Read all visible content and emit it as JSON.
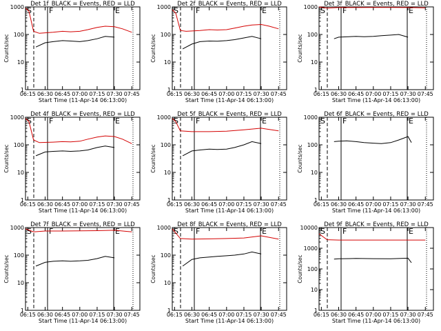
{
  "chart_data": [
    {
      "type": "line",
      "title": "Det 1f_BLACK = Events, RED = LLD",
      "xlabel": "Start Time (11-Apr-14 06:13:00)",
      "ylabel": "Counts/sec",
      "y_scale": "log",
      "ylim": [
        1,
        1000
      ],
      "y_ticks": [
        "1",
        "10",
        "100",
        "1000"
      ],
      "x_ticks": [
        "06:15",
        "06:30",
        "06:45",
        "07:00",
        "07:15",
        "07:30",
        "07:45"
      ],
      "vertical_lines": [
        "S",
        "F",
        "E"
      ],
      "series": [
        {
          "color_role": "black",
          "x": [
            "06:22",
            "06:30",
            "06:37",
            "06:45",
            "06:52",
            "07:00",
            "07:07",
            "07:15",
            "07:22",
            "07:30"
          ],
          "values": [
            35,
            50,
            55,
            60,
            58,
            55,
            60,
            70,
            85,
            80
          ]
        },
        {
          "color_role": "red",
          "x": [
            "06:13",
            "06:16",
            "06:20",
            "06:25",
            "06:37",
            "06:45",
            "06:52",
            "07:00",
            "07:07",
            "07:15",
            "07:22",
            "07:30",
            "07:37",
            "07:45"
          ],
          "values": [
            900,
            700,
            130,
            110,
            120,
            130,
            125,
            130,
            150,
            180,
            200,
            190,
            160,
            120
          ]
        }
      ]
    },
    {
      "type": "line",
      "title": "Det 2f_BLACK = Events, RED = LLD",
      "xlabel": "Start Time (11-Apr-14 06:13:00)",
      "ylabel": "Counts/sec",
      "y_scale": "log",
      "ylim": [
        1,
        1000
      ],
      "y_ticks": [
        "1",
        "10",
        "100",
        "1000"
      ],
      "x_ticks": [
        "06:15",
        "06:30",
        "06:45",
        "07:00",
        "07:15",
        "07:30",
        "07:45"
      ],
      "vertical_lines": [
        "S",
        "F",
        "E"
      ],
      "series": [
        {
          "color_role": "black",
          "x": [
            "06:22",
            "06:30",
            "06:37",
            "06:45",
            "06:52",
            "07:00",
            "07:07",
            "07:15",
            "07:22",
            "07:30"
          ],
          "values": [
            30,
            45,
            55,
            58,
            57,
            60,
            65,
            75,
            85,
            70
          ]
        },
        {
          "color_role": "red",
          "x": [
            "06:13",
            "06:16",
            "06:20",
            "06:25",
            "06:37",
            "06:45",
            "06:52",
            "07:00",
            "07:07",
            "07:15",
            "07:22",
            "07:30",
            "07:37",
            "07:45"
          ],
          "values": [
            800,
            600,
            140,
            130,
            140,
            150,
            145,
            150,
            170,
            200,
            220,
            230,
            200,
            160
          ]
        }
      ]
    },
    {
      "type": "line",
      "title": "Det 3f_BLACK = Events, RED = LLD",
      "xlabel": "Start Time (11-Apr-14 06:13:00)",
      "ylabel": "Counts/sec",
      "y_scale": "log",
      "ylim": [
        1,
        1000
      ],
      "y_ticks": [
        "1",
        "10",
        "100",
        "1000"
      ],
      "x_ticks": [
        "06:15",
        "06:30",
        "06:45",
        "07:00",
        "07:15",
        "07:30",
        "07:45"
      ],
      "vertical_lines": [
        "S",
        "F",
        "E"
      ],
      "series": [
        {
          "color_role": "black",
          "x": [
            "06:26",
            "06:30",
            "06:37",
            "06:45",
            "06:52",
            "07:00",
            "07:07",
            "07:15",
            "07:22",
            "07:30"
          ],
          "values": [
            70,
            80,
            82,
            85,
            83,
            85,
            90,
            95,
            100,
            80
          ]
        },
        {
          "color_role": "red",
          "x": [
            "06:13",
            "06:20",
            "06:30",
            "06:45",
            "07:00",
            "07:15",
            "07:30",
            "07:45"
          ],
          "values": [
            1000,
            900,
            950,
            950,
            960,
            960,
            950,
            920
          ]
        }
      ]
    },
    {
      "type": "line",
      "title": "Det 4f_BLACK = Events, RED = LLD",
      "xlabel": "Start Time (11-Apr-14 06:13:00)",
      "ylabel": "Counts/sec",
      "y_scale": "log",
      "ylim": [
        1,
        1000
      ],
      "y_ticks": [
        "1",
        "10",
        "100",
        "1000"
      ],
      "x_ticks": [
        "06:15",
        "06:30",
        "06:45",
        "07:00",
        "07:15",
        "07:30",
        "07:45"
      ],
      "vertical_lines": [
        "S",
        "F",
        "E"
      ],
      "series": [
        {
          "color_role": "black",
          "x": [
            "06:22",
            "06:30",
            "06:37",
            "06:45",
            "06:52",
            "07:00",
            "07:07",
            "07:15",
            "07:22",
            "07:30"
          ],
          "values": [
            40,
            55,
            58,
            60,
            58,
            60,
            65,
            80,
            90,
            80
          ]
        },
        {
          "color_role": "red",
          "x": [
            "06:13",
            "06:16",
            "06:20",
            "06:25",
            "06:37",
            "06:45",
            "06:52",
            "07:00",
            "07:07",
            "07:15",
            "07:22",
            "07:30",
            "07:37",
            "07:45"
          ],
          "values": [
            900,
            700,
            150,
            120,
            125,
            130,
            128,
            135,
            160,
            190,
            210,
            200,
            160,
            110
          ]
        }
      ]
    },
    {
      "type": "line",
      "title": "Det 5f_BLACK = Events, RED = LLD",
      "xlabel": "Start Time (11-Apr-14 06:13:00)",
      "ylabel": "Counts/sec",
      "y_scale": "log",
      "ylim": [
        1,
        1000
      ],
      "y_ticks": [
        "1",
        "10",
        "100",
        "1000"
      ],
      "x_ticks": [
        "06:15",
        "06:30",
        "06:45",
        "07:00",
        "07:15",
        "07:30",
        "07:45"
      ],
      "vertical_lines": [
        "S",
        "F",
        "E"
      ],
      "series": [
        {
          "color_role": "black",
          "x": [
            "06:22",
            "06:30",
            "06:37",
            "06:45",
            "06:52",
            "07:00",
            "07:07",
            "07:15",
            "07:22",
            "07:30"
          ],
          "values": [
            40,
            60,
            65,
            70,
            68,
            70,
            80,
            100,
            130,
            110
          ]
        },
        {
          "color_role": "red",
          "x": [
            "06:13",
            "06:16",
            "06:20",
            "06:30",
            "06:45",
            "07:00",
            "07:15",
            "07:30",
            "07:45"
          ],
          "values": [
            900,
            700,
            320,
            300,
            300,
            310,
            350,
            400,
            320
          ]
        }
      ]
    },
    {
      "type": "line",
      "title": "Det 6f_BLACK = Events, RED = LLD",
      "xlabel": "Start Time (11-Apr-14 06:13:00)",
      "ylabel": "Counts/sec",
      "y_scale": "log",
      "ylim": [
        1,
        1000
      ],
      "y_ticks": [
        "1",
        "10",
        "100",
        "1000"
      ],
      "x_ticks": [
        "06:15",
        "06:30",
        "06:45",
        "07:00",
        "07:15",
        "07:30",
        "07:45"
      ],
      "vertical_lines": [
        "S",
        "F",
        "E"
      ],
      "series": [
        {
          "color_role": "black",
          "x": [
            "06:26",
            "06:30",
            "06:37",
            "06:45",
            "06:52",
            "07:00",
            "07:07",
            "07:15",
            "07:22",
            "07:30",
            "07:33"
          ],
          "values": [
            130,
            135,
            140,
            130,
            120,
            115,
            110,
            120,
            150,
            200,
            120
          ]
        }
      ]
    },
    {
      "type": "line",
      "title": "Det 7f_BLACK = Events, RED = LLD",
      "xlabel": "Start Time (11-Apr-14 06:13:00)",
      "ylabel": "Counts/sec",
      "y_scale": "log",
      "ylim": [
        1,
        1000
      ],
      "y_ticks": [
        "1",
        "10",
        "100",
        "1000"
      ],
      "x_ticks": [
        "06:15",
        "06:30",
        "06:45",
        "07:00",
        "07:15",
        "07:30",
        "07:45"
      ],
      "vertical_lines": [
        "S",
        "F",
        "E"
      ],
      "series": [
        {
          "color_role": "black",
          "x": [
            "06:22",
            "06:30",
            "06:37",
            "06:45",
            "06:52",
            "07:00",
            "07:07",
            "07:15",
            "07:22",
            "07:30"
          ],
          "values": [
            40,
            55,
            60,
            62,
            60,
            62,
            65,
            75,
            90,
            80
          ]
        },
        {
          "color_role": "red",
          "x": [
            "06:13",
            "06:20",
            "06:30",
            "06:45",
            "07:00",
            "07:15",
            "07:30",
            "07:45"
          ],
          "values": [
            900,
            700,
            750,
            750,
            760,
            770,
            800,
            700
          ]
        }
      ]
    },
    {
      "type": "line",
      "title": "Det 8f_BLACK = Events, RED = LLD",
      "xlabel": "Start Time (11-Apr-14 06:13:00)",
      "ylabel": "Counts/sec",
      "y_scale": "log",
      "ylim": [
        1,
        1000
      ],
      "y_ticks": [
        "1",
        "10",
        "100",
        "1000"
      ],
      "x_ticks": [
        "06:15",
        "06:30",
        "06:45",
        "07:00",
        "07:15",
        "07:30",
        "07:45"
      ],
      "vertical_lines": [
        "S",
        "F",
        "E"
      ],
      "series": [
        {
          "color_role": "black",
          "x": [
            "06:22",
            "06:30",
            "06:37",
            "06:45",
            "06:52",
            "07:00",
            "07:07",
            "07:15",
            "07:22",
            "07:30"
          ],
          "values": [
            40,
            70,
            80,
            85,
            90,
            95,
            100,
            110,
            130,
            110
          ]
        },
        {
          "color_role": "red",
          "x": [
            "06:13",
            "06:20",
            "06:30",
            "06:45",
            "07:00",
            "07:15",
            "07:30",
            "07:45"
          ],
          "values": [
            900,
            400,
            380,
            390,
            400,
            420,
            500,
            380
          ]
        }
      ]
    },
    {
      "type": "line",
      "title": "Det 9f_BLACK = Events, RED = LLD",
      "xlabel": "Start Time (11-Apr-14 06:13:00)",
      "ylabel": "Counts/sec",
      "y_scale": "log",
      "ylim": [
        1,
        10000
      ],
      "y_ticks": [
        "1",
        "10",
        "100",
        "1000",
        "10000"
      ],
      "x_ticks": [
        "06:15",
        "06:30",
        "06:45",
        "07:00",
        "07:15",
        "07:30",
        "07:45"
      ],
      "vertical_lines": [
        "S",
        "F",
        "E"
      ],
      "series": [
        {
          "color_role": "black",
          "x": [
            "06:26",
            "06:30",
            "06:45",
            "07:00",
            "07:15",
            "07:30",
            "07:33"
          ],
          "values": [
            300,
            310,
            320,
            315,
            310,
            330,
            200
          ]
        },
        {
          "color_role": "red",
          "x": [
            "06:13",
            "06:20",
            "06:30",
            "06:45",
            "07:00",
            "07:15",
            "07:30",
            "07:45"
          ],
          "values": [
            5000,
            2600,
            2500,
            2500,
            2500,
            2500,
            2500,
            2500
          ]
        }
      ]
    }
  ]
}
